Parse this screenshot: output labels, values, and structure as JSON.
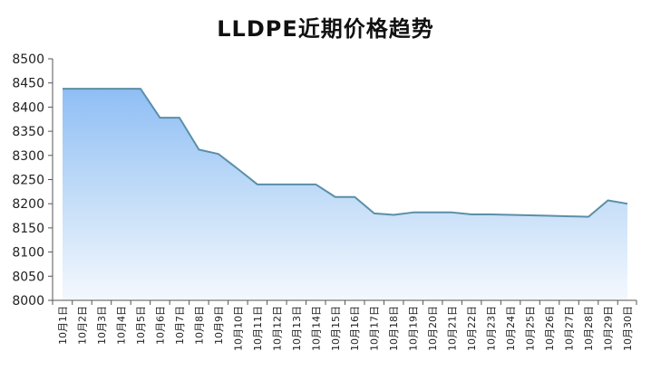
{
  "chart_data": {
    "type": "area",
    "title": "LLDPE近期价格趋势",
    "xlabel": "",
    "ylabel": "",
    "ylim": [
      8000,
      8500
    ],
    "yticks": [
      8000,
      8050,
      8100,
      8150,
      8200,
      8250,
      8300,
      8350,
      8400,
      8450,
      8500
    ],
    "grid": false,
    "legend": "none",
    "colors": {
      "line": "#5a8fa8",
      "fill_top": "#8fbef5",
      "fill_bottom": "#f4f8fd",
      "axis": "#555555"
    },
    "categories": [
      "10月1日",
      "10月2日",
      "10月3日",
      "10月4日",
      "10月5日",
      "10月6日",
      "10月7日",
      "10月8日",
      "10月9日",
      "10月10日",
      "10月11日",
      "10月12日",
      "10月13日",
      "10月14日",
      "10月15日",
      "10月16日",
      "10月17日",
      "10月18日",
      "10月19日",
      "10月20日",
      "10月21日",
      "10月22日",
      "10月23日",
      "10月24日",
      "10月25日",
      "10月26日",
      "10月27日",
      "10月28日",
      "10月29日",
      "10月30日"
    ],
    "values": [
      8438,
      8438,
      8438,
      8438,
      8438,
      8378,
      8378,
      8312,
      8303,
      8272,
      8240,
      8240,
      8240,
      8240,
      8214,
      8214,
      8180,
      8177,
      8182,
      8182,
      8182,
      8178,
      8178,
      8177,
      8176,
      8175,
      8174,
      8173,
      8207,
      8200
    ]
  }
}
